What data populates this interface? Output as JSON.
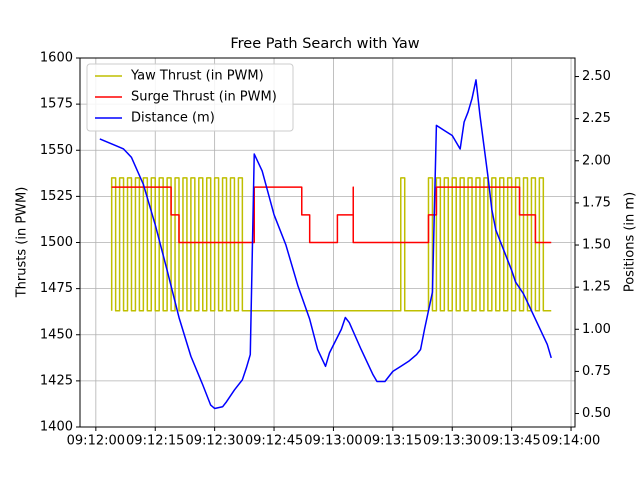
{
  "chart_data": {
    "type": "line",
    "title": "Free Path Search with Yaw",
    "y_label": "Thrusts (in PWM)",
    "y2_label": "Positions (in m)",
    "xlim": [
      "09:11:56",
      "09:14:01"
    ],
    "xticks": [
      "09:12:00",
      "09:12:15",
      "09:12:30",
      "09:12:45",
      "09:13:00",
      "09:13:15",
      "09:13:30",
      "09:13:45",
      "09:14:00"
    ],
    "ylim": [
      1400,
      1600
    ],
    "yticks": [
      1400,
      1425,
      1450,
      1475,
      1500,
      1525,
      1550,
      1575,
      1600
    ],
    "y2lim": [
      0.42,
      2.61
    ],
    "y2ticks": [
      {
        "value": 0.5,
        "label": "0.50"
      },
      {
        "value": 0.75,
        "label": "0.75"
      },
      {
        "value": 1.0,
        "label": "1.00"
      },
      {
        "value": 1.25,
        "label": "1.25"
      },
      {
        "value": 1.5,
        "label": "1.50"
      },
      {
        "value": 1.75,
        "label": "1.75"
      },
      {
        "value": 2.0,
        "label": "2.00"
      },
      {
        "value": 2.25,
        "label": "2.25"
      },
      {
        "value": 2.5,
        "label": "2.50"
      }
    ],
    "grid": true,
    "legend": "upper left",
    "series": [
      {
        "name": "Yaw Thrust (in PWM)",
        "color": "#bfbf00",
        "x": [
          "09:12:04",
          "09:12:04",
          "09:12:05",
          "09:12:05",
          "09:12:06",
          "09:12:06",
          "09:12:07",
          "09:12:07",
          "09:12:08",
          "09:12:08",
          "09:12:09",
          "09:12:09",
          "09:12:10",
          "09:12:10",
          "09:12:11",
          "09:12:11",
          "09:12:12",
          "09:12:12",
          "09:12:13",
          "09:12:13",
          "09:12:14",
          "09:12:14",
          "09:12:15",
          "09:12:15",
          "09:12:16",
          "09:12:16",
          "09:12:17",
          "09:12:17",
          "09:12:18",
          "09:12:18",
          "09:12:19",
          "09:12:19",
          "09:12:20",
          "09:12:20",
          "09:12:21",
          "09:12:21",
          "09:12:22",
          "09:12:22",
          "09:12:23",
          "09:12:23",
          "09:12:24",
          "09:12:24",
          "09:12:25",
          "09:12:25",
          "09:12:26",
          "09:12:26",
          "09:12:27",
          "09:12:27",
          "09:12:28",
          "09:12:28",
          "09:12:29",
          "09:12:29",
          "09:12:30",
          "09:12:30",
          "09:12:31",
          "09:12:31",
          "09:12:32",
          "09:12:32",
          "09:12:33",
          "09:12:33",
          "09:12:34",
          "09:12:34",
          "09:12:35",
          "09:12:35",
          "09:12:36",
          "09:12:36",
          "09:12:37",
          "09:12:37",
          "09:13:17",
          "09:13:17",
          "09:13:18",
          "09:13:18",
          "09:13:24",
          "09:13:24",
          "09:13:25",
          "09:13:25",
          "09:13:26",
          "09:13:26",
          "09:13:27",
          "09:13:27",
          "09:13:28",
          "09:13:28",
          "09:13:29",
          "09:13:29",
          "09:13:30",
          "09:13:30",
          "09:13:31",
          "09:13:31",
          "09:13:32",
          "09:13:32",
          "09:13:33",
          "09:13:33",
          "09:13:34",
          "09:13:34",
          "09:13:35",
          "09:13:35",
          "09:13:36",
          "09:13:36",
          "09:13:37",
          "09:13:37",
          "09:13:38",
          "09:13:38",
          "09:13:39",
          "09:13:39",
          "09:13:40",
          "09:13:40",
          "09:13:41",
          "09:13:41",
          "09:13:42",
          "09:13:42",
          "09:13:43",
          "09:13:43",
          "09:13:44",
          "09:13:44",
          "09:13:45",
          "09:13:45",
          "09:13:46",
          "09:13:46",
          "09:13:47",
          "09:13:47",
          "09:13:48",
          "09:13:48",
          "09:13:49",
          "09:13:49",
          "09:13:50",
          "09:13:50",
          "09:13:51",
          "09:13:51",
          "09:13:52",
          "09:13:52",
          "09:13:53",
          "09:13:53",
          "09:13:55"
        ],
        "values": [
          1463,
          1535,
          1535,
          1463,
          1463,
          1535,
          1535,
          1463,
          1463,
          1535,
          1535,
          1463,
          1463,
          1535,
          1535,
          1463,
          1463,
          1535,
          1535,
          1463,
          1463,
          1535,
          1535,
          1463,
          1463,
          1535,
          1535,
          1463,
          1463,
          1535,
          1535,
          1463,
          1463,
          1535,
          1535,
          1463,
          1463,
          1535,
          1535,
          1463,
          1463,
          1535,
          1535,
          1463,
          1463,
          1535,
          1535,
          1463,
          1463,
          1535,
          1535,
          1463,
          1463,
          1535,
          1535,
          1463,
          1463,
          1535,
          1535,
          1463,
          1463,
          1535,
          1535,
          1463,
          1463,
          1535,
          1535,
          1463,
          1463,
          1535,
          1535,
          1463,
          1463,
          1535,
          1535,
          1463,
          1463,
          1535,
          1535,
          1463,
          1463,
          1535,
          1535,
          1463,
          1463,
          1535,
          1535,
          1463,
          1463,
          1535,
          1535,
          1463,
          1463,
          1535,
          1535,
          1463,
          1463,
          1535,
          1535,
          1463,
          1463,
          1535,
          1535,
          1463,
          1463,
          1535,
          1535,
          1463,
          1463,
          1535,
          1535,
          1463,
          1463,
          1535,
          1535,
          1463,
          1463,
          1535,
          1535,
          1463,
          1463,
          1535,
          1535,
          1463,
          1463,
          1535,
          1535,
          1463,
          1463,
          1535,
          1535,
          1463,
          1463
        ]
      },
      {
        "name": "Surge Thrust (in PWM)",
        "color": "#ff0000",
        "x": [
          "09:12:04",
          "09:12:19",
          "09:12:19",
          "09:12:21",
          "09:12:21",
          "09:12:40",
          "09:12:40",
          "09:12:52",
          "09:12:52",
          "09:12:54",
          "09:12:54",
          "09:13:01",
          "09:13:01",
          "09:13:05",
          "09:13:05",
          "09:13:05",
          "09:13:24",
          "09:13:24",
          "09:13:26",
          "09:13:26",
          "09:13:47",
          "09:13:47",
          "09:13:51",
          "09:13:51",
          "09:13:55"
        ],
        "values": [
          1530,
          1530,
          1515,
          1515,
          1500,
          1500,
          1530,
          1530,
          1515,
          1515,
          1500,
          1500,
          1515,
          1515,
          1530,
          1500,
          1500,
          1515,
          1515,
          1530,
          1530,
          1515,
          1515,
          1500,
          1500
        ]
      },
      {
        "name": "Distance (m)",
        "color": "#0000ff",
        "axis": "y2",
        "x": [
          "09:12:01",
          "09:12:05",
          "09:12:07",
          "09:12:09",
          "09:12:12",
          "09:12:15",
          "09:12:18",
          "09:12:21",
          "09:12:24",
          "09:12:27",
          "09:12:29",
          "09:12:30",
          "09:12:32",
          "09:12:33",
          "09:12:35",
          "09:12:37",
          "09:12:38",
          "09:12:39",
          "09:12:40",
          "09:12:42",
          "09:12:45",
          "09:12:48",
          "09:12:51",
          "09:12:54",
          "09:12:56",
          "09:12:58",
          "09:12:59",
          "09:13:02",
          "09:13:03",
          "09:13:04",
          "09:13:07",
          "09:13:10",
          "09:13:11",
          "09:13:13",
          "09:13:15",
          "09:13:17",
          "09:13:19",
          "09:13:21",
          "09:13:22",
          "09:13:23",
          "09:13:25",
          "09:13:26",
          "09:13:28",
          "09:13:30",
          "09:13:32",
          "09:13:33",
          "09:13:34",
          "09:13:35",
          "09:13:36",
          "09:13:37",
          "09:13:38",
          "09:13:39",
          "09:13:40",
          "09:13:41",
          "09:13:42",
          "09:13:43",
          "09:13:44",
          "09:13:45",
          "09:13:46",
          "09:13:48",
          "09:13:50",
          "09:13:52",
          "09:13:54",
          "09:13:55"
        ],
        "values": [
          2.13,
          2.09,
          2.07,
          2.02,
          1.86,
          1.62,
          1.35,
          1.07,
          0.84,
          0.67,
          0.55,
          0.53,
          0.54,
          0.57,
          0.64,
          0.7,
          0.77,
          0.85,
          2.04,
          1.94,
          1.68,
          1.5,
          1.26,
          1.06,
          0.88,
          0.78,
          0.86,
          1.0,
          1.07,
          1.04,
          0.88,
          0.73,
          0.69,
          0.69,
          0.75,
          0.78,
          0.81,
          0.85,
          0.88,
          1.0,
          1.22,
          2.21,
          2.18,
          2.15,
          2.07,
          2.23,
          2.29,
          2.37,
          2.48,
          2.27,
          2.09,
          1.91,
          1.71,
          1.59,
          1.53,
          1.47,
          1.41,
          1.35,
          1.28,
          1.21,
          1.11,
          1.01,
          0.91,
          0.83
        ]
      }
    ]
  }
}
